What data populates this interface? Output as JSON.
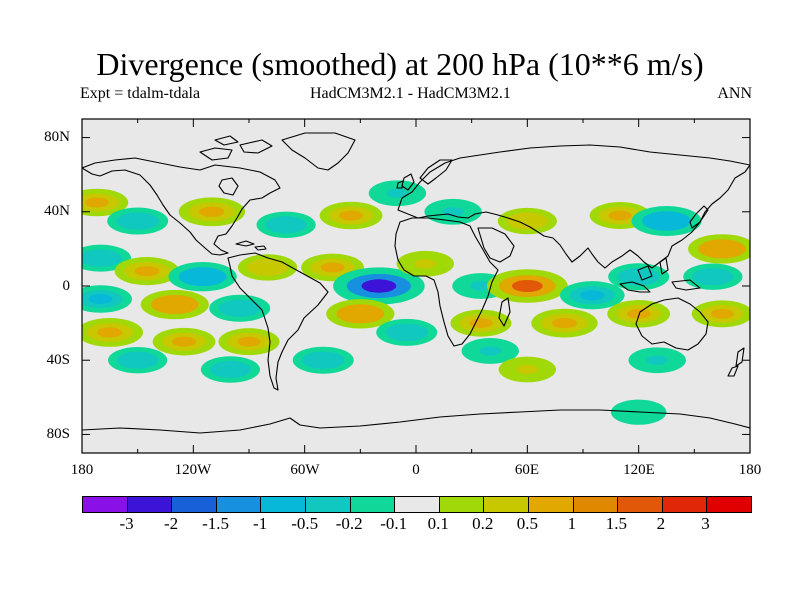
{
  "title": "Divergence (smoothed) at 200 hPa (10**6 m/s)",
  "subtitle_left": "Expt = tdalm-tdala",
  "subtitle_center": "HadCM3M2.1 - HadCM3M2.1",
  "subtitle_right": "ANN",
  "lat_ticks": [
    "80N",
    "40N",
    "0",
    "40S",
    "80S"
  ],
  "lon_ticks": [
    "180",
    "120W",
    "60W",
    "0",
    "60E",
    "120E",
    "180"
  ],
  "colorbar": {
    "labels": [
      "-3",
      "-2",
      "-1.5",
      "-1",
      "-0.5",
      "-0.2",
      "-0.1",
      "0.1",
      "0.2",
      "0.5",
      "1",
      "1.5",
      "2",
      "3"
    ],
    "colors": [
      "#8a10e8",
      "#3c14d8",
      "#1860d8",
      "#1890e0",
      "#08b8d8",
      "#10c8c0",
      "#10d898",
      "#e8e8e8",
      "#a0d808",
      "#c8c800",
      "#e0a800",
      "#e08800",
      "#e05808",
      "#e02808",
      "#e00000"
    ]
  },
  "chart_data": {
    "type": "heatmap",
    "variable": "Divergence (smoothed) at 200 hPa",
    "units": "10**6 m/s",
    "xlim": [
      -180,
      180
    ],
    "ylim": [
      -90,
      90
    ],
    "x_ticks": [
      -180,
      -120,
      -60,
      0,
      60,
      120,
      180
    ],
    "y_ticks": [
      80,
      40,
      0,
      -40,
      -80
    ],
    "levels": [
      -3,
      -2,
      -1.5,
      -1,
      -0.5,
      -0.2,
      -0.1,
      0.1,
      0.2,
      0.5,
      1,
      1.5,
      2,
      3
    ],
    "anomalies": [
      {
        "lon": -172,
        "lat": 45,
        "value": 0.6
      },
      {
        "lon": -150,
        "lat": 35,
        "value": -0.5
      },
      {
        "lon": -110,
        "lat": 40,
        "value": 0.8
      },
      {
        "lon": -70,
        "lat": 33,
        "value": -0.4
      },
      {
        "lon": -35,
        "lat": 38,
        "value": 0.6
      },
      {
        "lon": -10,
        "lat": 50,
        "value": -0.3
      },
      {
        "lon": 20,
        "lat": 40,
        "value": -0.3
      },
      {
        "lon": 60,
        "lat": 35,
        "value": 0.4
      },
      {
        "lon": 110,
        "lat": 38,
        "value": 0.5
      },
      {
        "lon": 135,
        "lat": 35,
        "value": -1.0
      },
      {
        "lon": 165,
        "lat": 20,
        "value": 0.9
      },
      {
        "lon": -170,
        "lat": 15,
        "value": -0.5
      },
      {
        "lon": -145,
        "lat": 8,
        "value": 0.7
      },
      {
        "lon": -115,
        "lat": 5,
        "value": -0.9
      },
      {
        "lon": -80,
        "lat": 10,
        "value": 0.4
      },
      {
        "lon": -45,
        "lat": 10,
        "value": 0.6
      },
      {
        "lon": -20,
        "lat": 0,
        "value": -2.2
      },
      {
        "lon": 5,
        "lat": 12,
        "value": 0.3
      },
      {
        "lon": 35,
        "lat": 0,
        "value": -0.3
      },
      {
        "lon": 60,
        "lat": 0,
        "value": 1.6
      },
      {
        "lon": 95,
        "lat": -5,
        "value": -0.7
      },
      {
        "lon": 120,
        "lat": 5,
        "value": -0.5
      },
      {
        "lon": 160,
        "lat": 5,
        "value": -0.4
      },
      {
        "lon": -170,
        "lat": -7,
        "value": -0.6
      },
      {
        "lon": -130,
        "lat": -10,
        "value": 0.9
      },
      {
        "lon": -95,
        "lat": -12,
        "value": -0.5
      },
      {
        "lon": -165,
        "lat": -25,
        "value": 0.8
      },
      {
        "lon": -125,
        "lat": -30,
        "value": 0.6
      },
      {
        "lon": -90,
        "lat": -30,
        "value": 0.5
      },
      {
        "lon": -30,
        "lat": -15,
        "value": 0.9
      },
      {
        "lon": -5,
        "lat": -25,
        "value": -0.5
      },
      {
        "lon": 35,
        "lat": -20,
        "value": 0.5
      },
      {
        "lon": 80,
        "lat": -20,
        "value": 0.8
      },
      {
        "lon": 120,
        "lat": -15,
        "value": 0.6
      },
      {
        "lon": 165,
        "lat": -15,
        "value": 0.5
      },
      {
        "lon": -150,
        "lat": -40,
        "value": -0.4
      },
      {
        "lon": -100,
        "lat": -45,
        "value": -0.4
      },
      {
        "lon": -50,
        "lat": -40,
        "value": -0.5
      },
      {
        "lon": 40,
        "lat": -35,
        "value": -0.3
      },
      {
        "lon": 60,
        "lat": -45,
        "value": 0.3
      },
      {
        "lon": 130,
        "lat": -40,
        "value": -0.3
      },
      {
        "lon": 120,
        "lat": -68,
        "value": -0.2
      }
    ]
  }
}
